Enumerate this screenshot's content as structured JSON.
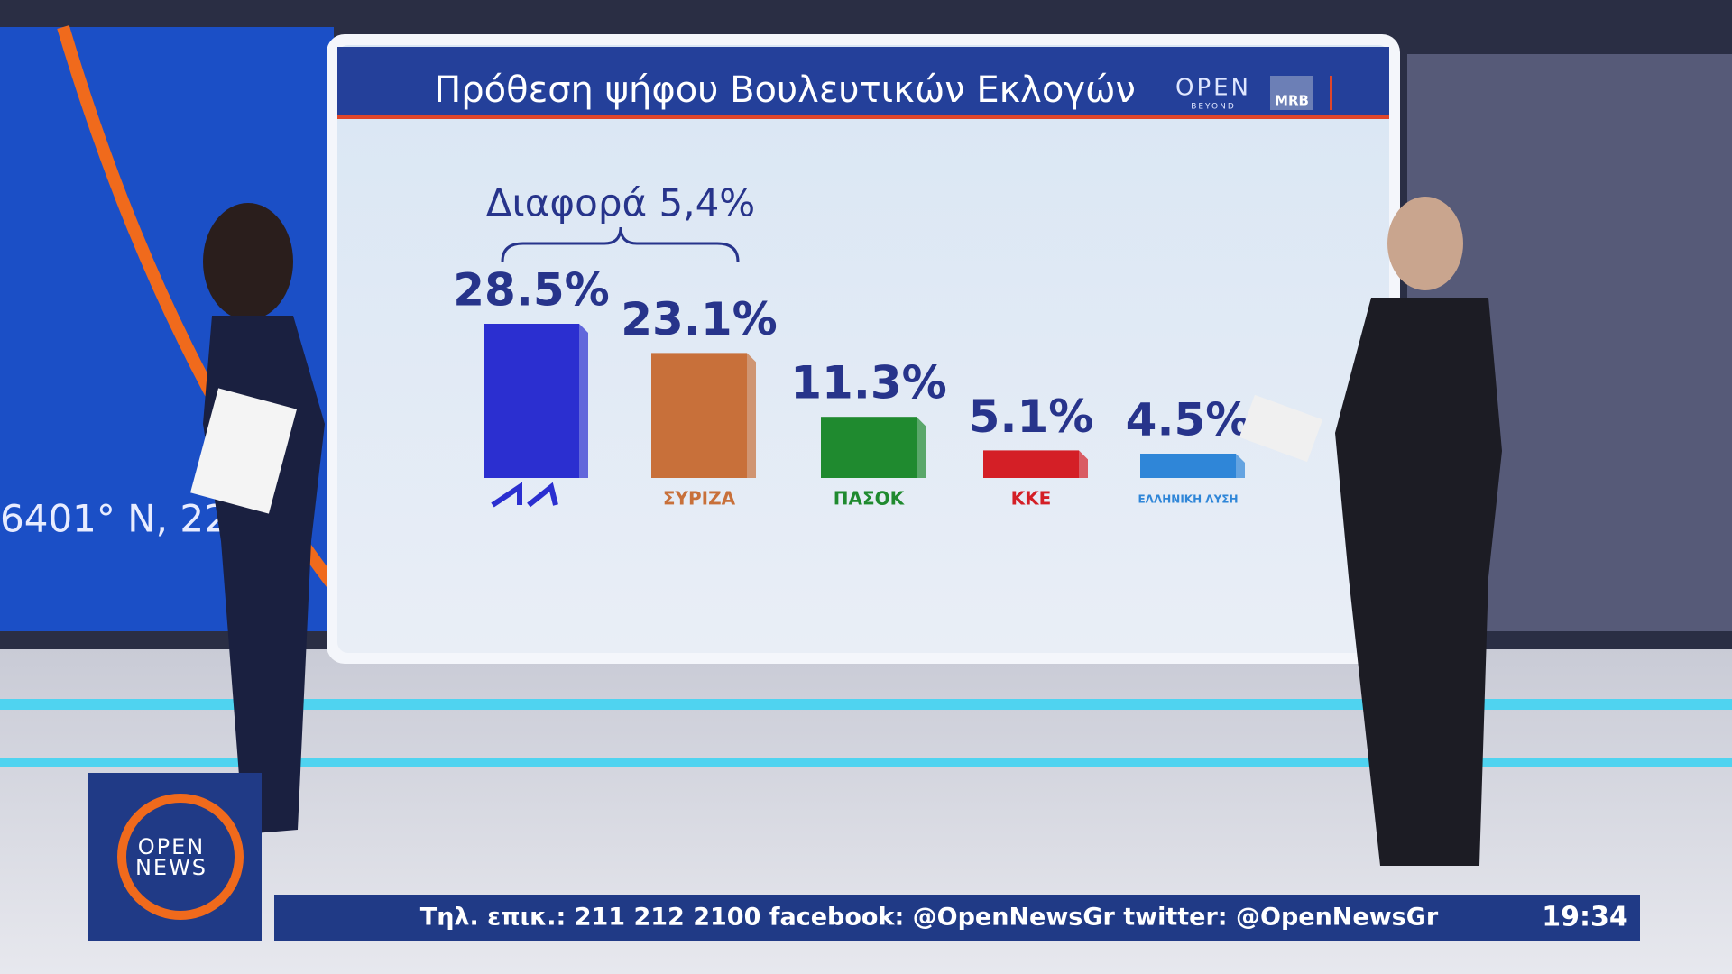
{
  "chart_data": {
    "type": "bar",
    "title": "Πρόθεση ψήφου Βουλευτικών Εκλογών",
    "annotation": "Διαφορά 5,4%",
    "categories": [
      null,
      "ΣΥΡΙΖΑ",
      "ΠΑΣΟΚ",
      "ΚΚΕ",
      "ΕΛΛΗΝΙΚΗ ΛΥΣΗ"
    ],
    "values": [
      28.5,
      23.1,
      11.3,
      5.1,
      4.5
    ],
    "value_labels": [
      "28.5%",
      "23.1%",
      "11.3%",
      "5.1%",
      "4.5%"
    ],
    "colors": [
      "#2b2fd0",
      "#c8703a",
      "#1f8a2f",
      "#d41f26",
      "#2f86d8"
    ]
  },
  "broadcast": {
    "sponsor_logo": "OPEN",
    "sponsor_sub": "BEYOND",
    "pollster": "MRB",
    "channel_logo": [
      "OPEN",
      "NEWS"
    ],
    "coordinates": "6401° N, 22",
    "ticker": "Τηλ. επικ.: 211 212 2100 facebook: @OpenNewsGr twitter: @OpenNewsGr",
    "clock": "19:34"
  }
}
